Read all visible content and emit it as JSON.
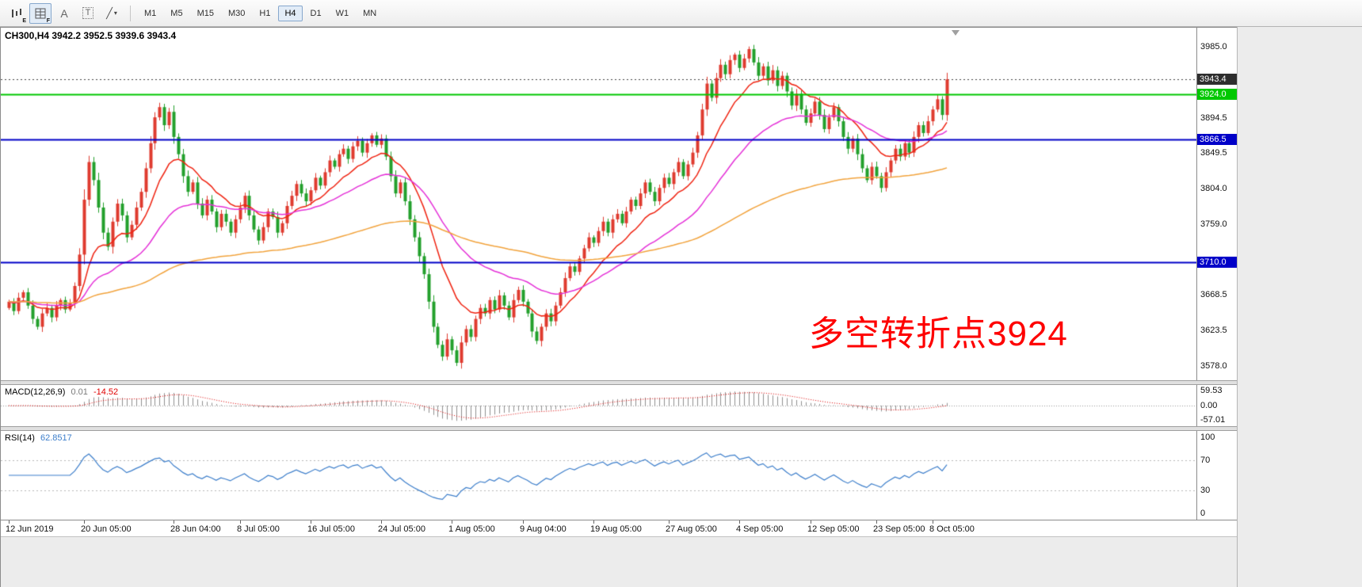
{
  "header": {
    "text": "CH300,H4  3942.2 3952.5 3939.6 3943.4"
  },
  "toolbar": {
    "tool_e_sub": "E",
    "tool_f_sub": "F",
    "tool_a": "A",
    "tool_t": "T",
    "shapes_glyph": "╱",
    "caret": "▾",
    "timeframes": [
      {
        "label": "M1",
        "active": false
      },
      {
        "label": "M5",
        "active": false
      },
      {
        "label": "M15",
        "active": false
      },
      {
        "label": "M30",
        "active": false
      },
      {
        "label": "H1",
        "active": false
      },
      {
        "label": "H4",
        "active": true
      },
      {
        "label": "D1",
        "active": false
      },
      {
        "label": "W1",
        "active": false
      },
      {
        "label": "MN",
        "active": false
      }
    ]
  },
  "annotation": {
    "text": "多空转折点3924",
    "color": "#fe0000"
  },
  "price_axis": {
    "badges": [
      {
        "label": "3943.4",
        "price": 3943.4,
        "bg": "#2e2e2e",
        "fg": "#ffffff",
        "name": "current-price-badge"
      },
      {
        "label": "3924.0",
        "price": 3924.0,
        "bg": "#00c800",
        "fg": "#ffffff",
        "name": "level-3924-badge"
      },
      {
        "label": "3866.5",
        "price": 3866.5,
        "bg": "#0000c8",
        "fg": "#ffffff",
        "name": "level-3866-badge"
      },
      {
        "label": "3710.0",
        "price": 3710.0,
        "bg": "#0000c8",
        "fg": "#ffffff",
        "name": "level-3710-badge"
      }
    ]
  },
  "chart_data": {
    "type": "candlestick",
    "symbol": "CH300",
    "timeframe": "H4",
    "ohlc_display": {
      "open": 3942.2,
      "high": 3952.5,
      "low": 3939.6,
      "close": 3943.4
    },
    "bull_color": "#df3b2f",
    "bear_color": "#23a02c",
    "y_axis": {
      "min": 3578.0,
      "max": 3985.0,
      "labels": [
        3985.0,
        3894.5,
        3849.5,
        3804.0,
        3759.0,
        3668.5,
        3623.5,
        3578.0
      ]
    },
    "levels": [
      {
        "price": 3943.4,
        "color": "#444444",
        "style": "dotted",
        "width": 1,
        "meaning": "current price"
      },
      {
        "price": 3924.0,
        "color": "#00c800",
        "style": "solid",
        "width": 2,
        "meaning": "bull-bear pivot line"
      },
      {
        "price": 3866.5,
        "color": "#0000c8",
        "style": "solid",
        "width": 2,
        "meaning": "support-resistance"
      },
      {
        "price": 3710.0,
        "color": "#0000c8",
        "style": "solid",
        "width": 2,
        "meaning": "support-resistance"
      }
    ],
    "moving_averages": [
      {
        "period": 13,
        "color": "#f02311"
      },
      {
        "period": 34,
        "color": "#e531d8"
      },
      {
        "period": 120,
        "color": "#f2a33c"
      }
    ],
    "closes": [
      3660,
      3648,
      3665,
      3672,
      3655,
      3638,
      3628,
      3645,
      3652,
      3640,
      3655,
      3662,
      3650,
      3658,
      3680,
      3720,
      3790,
      3838,
      3815,
      3780,
      3748,
      3730,
      3762,
      3785,
      3770,
      3742,
      3758,
      3780,
      3800,
      3830,
      3862,
      3895,
      3908,
      3885,
      3902,
      3870,
      3848,
      3820,
      3800,
      3812,
      3785,
      3770,
      3790,
      3775,
      3755,
      3772,
      3762,
      3748,
      3765,
      3780,
      3795,
      3770,
      3752,
      3738,
      3755,
      3775,
      3768,
      3748,
      3760,
      3782,
      3795,
      3810,
      3798,
      3788,
      3802,
      3818,
      3808,
      3825,
      3840,
      3832,
      3848,
      3855,
      3842,
      3858,
      3865,
      3850,
      3862,
      3872,
      3860,
      3868,
      3845,
      3820,
      3798,
      3812,
      3788,
      3765,
      3742,
      3718,
      3695,
      3660,
      3628,
      3605,
      3590,
      3612,
      3598,
      3582,
      3608,
      3625,
      3615,
      3638,
      3652,
      3645,
      3662,
      3650,
      3668,
      3655,
      3640,
      3662,
      3675,
      3660,
      3645,
      3622,
      3610,
      3628,
      3645,
      3635,
      3655,
      3672,
      3690,
      3705,
      3698,
      3715,
      3728,
      3742,
      3735,
      3750,
      3762,
      3748,
      3765,
      3772,
      3760,
      3775,
      3790,
      3782,
      3798,
      3812,
      3800,
      3788,
      3805,
      3818,
      3810,
      3825,
      3838,
      3820,
      3835,
      3850,
      3872,
      3905,
      3938,
      3920,
      3945,
      3962,
      3950,
      3968,
      3975,
      3958,
      3970,
      3982,
      3965,
      3948,
      3960,
      3942,
      3955,
      3935,
      3948,
      3928,
      3910,
      3925,
      3905,
      3888,
      3900,
      3915,
      3898,
      3880,
      3895,
      3908,
      3890,
      3870,
      3855,
      3868,
      3848,
      3830,
      3815,
      3832,
      3820,
      3805,
      3825,
      3840,
      3855,
      3845,
      3862,
      3850,
      3870,
      3885,
      3875,
      3890,
      3905,
      3918,
      3898,
      3943.4
    ],
    "time_labels": [
      {
        "index": 0,
        "label": "12 Jun 2019"
      },
      {
        "index": 16,
        "label": "20 Jun 05:00"
      },
      {
        "index": 35,
        "label": "28 Jun 04:00"
      },
      {
        "index": 49,
        "label": "8 Jul 05:00"
      },
      {
        "index": 64,
        "label": "16 Jul 05:00"
      },
      {
        "index": 79,
        "label": "24 Jul 05:00"
      },
      {
        "index": 94,
        "label": "1 Aug 05:00"
      },
      {
        "index": 109,
        "label": "9 Aug 04:00"
      },
      {
        "index": 124,
        "label": "19 Aug 05:00"
      },
      {
        "index": 140,
        "label": "27 Aug 05:00"
      },
      {
        "index": 155,
        "label": "4 Sep 05:00"
      },
      {
        "index": 170,
        "label": "12 Sep 05:00"
      },
      {
        "index": 184,
        "label": "23 Sep 05:00"
      },
      {
        "index": 196,
        "label": "8 Oct 05:00"
      }
    ],
    "macd": {
      "label": "MACD(12,26,9)",
      "main_value": "0.01",
      "signal_value": "-14.52",
      "fast": 12,
      "slow": 26,
      "signal_period": 9,
      "axis_values": [
        59.53,
        0.0,
        -57.01
      ],
      "histogram_color": "#8f8f8f",
      "signal_color": "#e00000"
    },
    "rsi": {
      "label": "RSI(14)",
      "value": "62.8517",
      "period": 14,
      "axis_values": [
        100,
        70,
        30,
        0
      ],
      "levels": [
        70,
        30
      ],
      "color": "#3c7ecb"
    }
  }
}
